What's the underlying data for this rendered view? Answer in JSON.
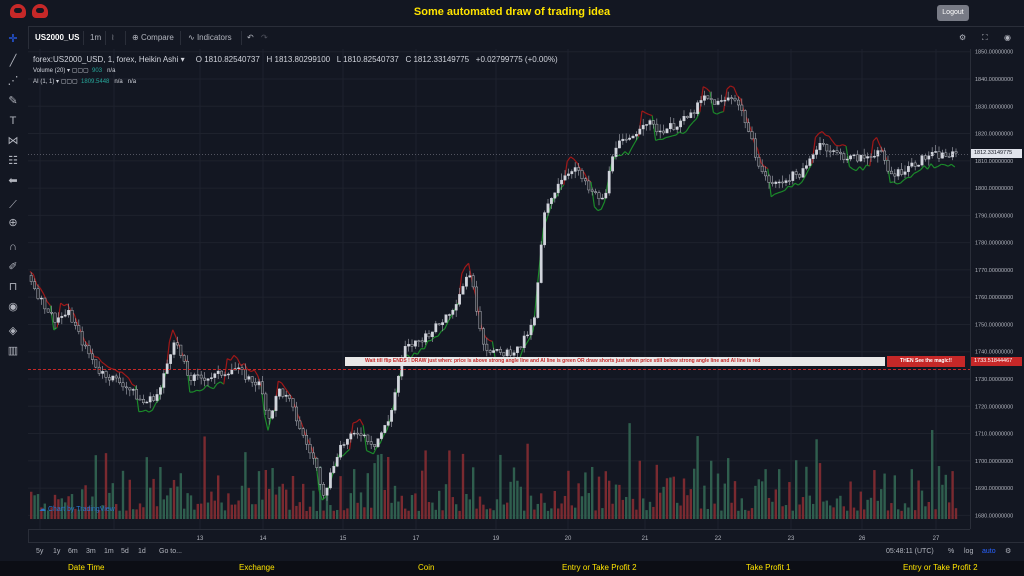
{
  "header": {
    "title": "Some automated draw of trading idea",
    "logout_label": "Logout"
  },
  "toolbar": {
    "symbol": "US2000_US",
    "interval": "1m",
    "compare_label": "Compare",
    "indicators_label": "Indicators"
  },
  "legend": {
    "title": "forex:US2000_USD, 1, forex, Heikin Ashi",
    "o": "O 1810.82540737",
    "h": "H 1813.80299100",
    "l": "L 1810.82540737",
    "c": "C 1812.33149775",
    "chg": "+0.02799775 (+0.00%)",
    "volume_label": "Volume (20)",
    "volume_val": "903",
    "volume_na": "n/a",
    "ai_label": "AI (1, 1)",
    "ai_val": "1809.5448",
    "ai_na1": "n/a",
    "ai_na2": "n/a"
  },
  "banner": {
    "text": "Wait till flip ENDS  !    DRAW just when:  price is above strong angle line and AI line is green         OR          draw shorts just when price still below strong angle line and AI line is red",
    "red_text": "THEN See the magic!!"
  },
  "price_axis": {
    "ticks": [
      "1850.00000000",
      "1840.00000000",
      "1830.00000000",
      "1820.00000000",
      "1810.00000000",
      "1800.00000000",
      "1790.00000000",
      "1780.00000000",
      "1770.00000000",
      "1760.00000000",
      "1750.00000000",
      "1740.00000000",
      "1730.00000000",
      "1720.00000000",
      "1710.00000000",
      "1700.00000000",
      "1690.00000000",
      "1680.00000000"
    ],
    "current_tag": "1812.33149775",
    "line_tag": "1733.51844467"
  },
  "time_axis": {
    "ticks": [
      "13",
      "14",
      "15",
      "17",
      "19",
      "20",
      "21",
      "22",
      "23",
      "26",
      "27"
    ]
  },
  "bottombar": {
    "ranges": [
      "5y",
      "1y",
      "6m",
      "3m",
      "1m",
      "5d",
      "1d"
    ],
    "goto": "Go to...",
    "clock": "05:48:11 (UTC)",
    "percent": "%",
    "log": "log",
    "auto": "auto"
  },
  "watermark": "Chart by TradingView",
  "footer": {
    "items": [
      "Date Time",
      "Exchange",
      "Coin",
      "Entry or Take Profit 2",
      "Take Profit 1",
      "Entry or Take Profit 2"
    ]
  },
  "colors": {
    "up": "#d1d4dc",
    "down": "#26292f",
    "ai_green": "#1b8a2a",
    "ai_red": "#a01818",
    "vol_up": "#2f5e4e",
    "vol_down": "#7a2a30",
    "accent": "#ffe400"
  },
  "chart_data": {
    "type": "candlestick",
    "ylim": [
      1675,
      1851
    ],
    "anchors": [
      [
        0,
        1768
      ],
      [
        10,
        1760
      ],
      [
        25,
        1752
      ],
      [
        40,
        1754
      ],
      [
        55,
        1742
      ],
      [
        70,
        1733
      ],
      [
        95,
        1728
      ],
      [
        115,
        1721
      ],
      [
        130,
        1725
      ],
      [
        145,
        1745
      ],
      [
        160,
        1730
      ],
      [
        185,
        1731
      ],
      [
        205,
        1734
      ],
      [
        220,
        1730
      ],
      [
        230,
        1728
      ],
      [
        240,
        1716
      ],
      [
        250,
        1726
      ],
      [
        260,
        1722
      ],
      [
        275,
        1708
      ],
      [
        285,
        1700
      ],
      [
        295,
        1688
      ],
      [
        310,
        1705
      ],
      [
        330,
        1711
      ],
      [
        345,
        1706
      ],
      [
        360,
        1715
      ],
      [
        375,
        1741
      ],
      [
        390,
        1744
      ],
      [
        410,
        1750
      ],
      [
        425,
        1757
      ],
      [
        440,
        1770
      ],
      [
        455,
        1742
      ],
      [
        470,
        1739
      ],
      [
        490,
        1741
      ],
      [
        505,
        1751
      ],
      [
        515,
        1790
      ],
      [
        530,
        1803
      ],
      [
        545,
        1808
      ],
      [
        560,
        1799
      ],
      [
        575,
        1795
      ],
      [
        585,
        1816
      ],
      [
        600,
        1817
      ],
      [
        615,
        1825
      ],
      [
        630,
        1821
      ],
      [
        645,
        1823
      ],
      [
        660,
        1826
      ],
      [
        675,
        1833
      ],
      [
        690,
        1831
      ],
      [
        705,
        1834
      ],
      [
        715,
        1826
      ],
      [
        725,
        1814
      ],
      [
        735,
        1804
      ],
      [
        745,
        1801
      ],
      [
        760,
        1804
      ],
      [
        775,
        1806
      ],
      [
        790,
        1817
      ],
      [
        805,
        1813
      ],
      [
        820,
        1811
      ],
      [
        835,
        1811
      ],
      [
        850,
        1814
      ],
      [
        860,
        1805
      ],
      [
        870,
        1806
      ],
      [
        880,
        1808
      ],
      [
        890,
        1810
      ],
      [
        900,
        1812
      ],
      [
        908,
        1812
      ]
    ]
  }
}
